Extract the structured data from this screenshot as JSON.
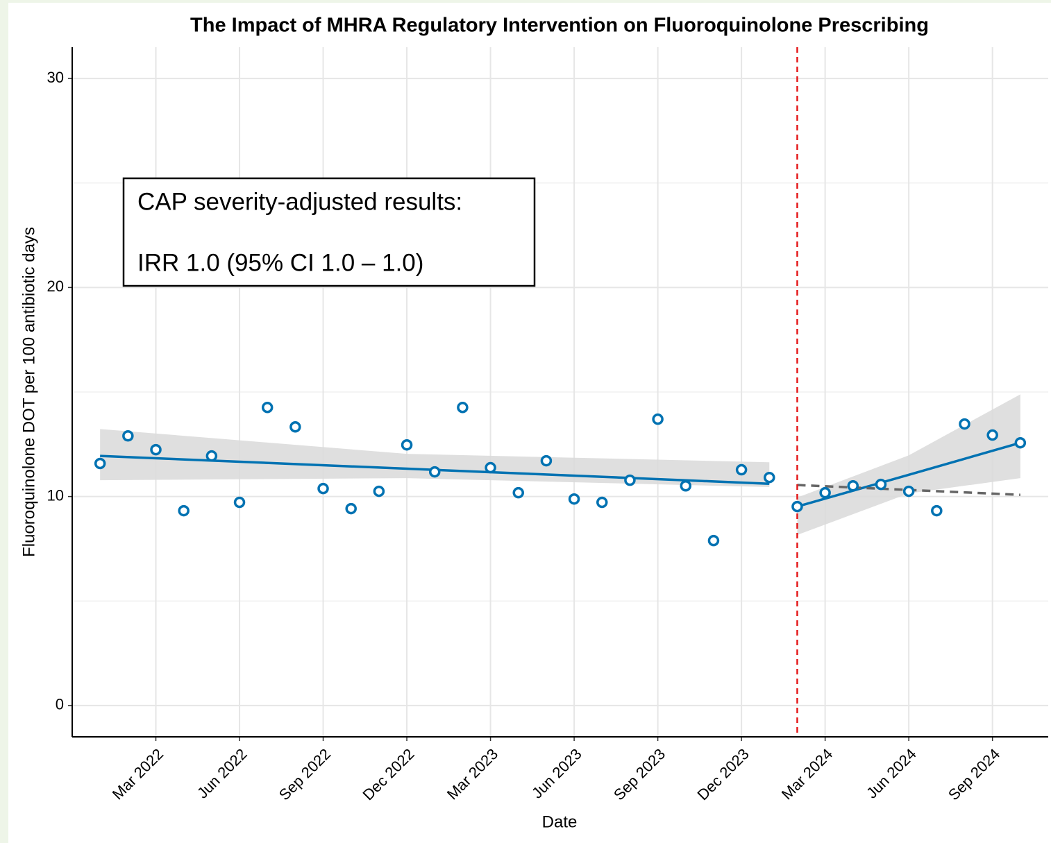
{
  "chart_data": {
    "type": "line",
    "title": "The Impact of MHRA Regulatory Intervention on Fluoroquinolone Prescribing",
    "x_label": "Date",
    "y_label": "Fluoroquinolone DOT per 100 antibiotic days",
    "annotation": [
      "CAP severity-adjusted results:",
      "IRR 1.0 (95% CI 1.0 – 1.0)"
    ],
    "intervention": {
      "x": "2024-02",
      "color": "#e41a1c"
    },
    "xlim": [
      "2021-12",
      "2024-11"
    ],
    "xticks": [
      {
        "value": "2022-03",
        "label": "Mar 2022"
      },
      {
        "value": "2022-06",
        "label": "Jun 2022"
      },
      {
        "value": "2022-09",
        "label": "Sep 2022"
      },
      {
        "value": "2022-12",
        "label": "Dec 2022"
      },
      {
        "value": "2023-03",
        "label": "Mar 2023"
      },
      {
        "value": "2023-06",
        "label": "Jun 2023"
      },
      {
        "value": "2023-09",
        "label": "Sep 2023"
      },
      {
        "value": "2023-12",
        "label": "Dec 2023"
      },
      {
        "value": "2024-03",
        "label": "Mar 2024"
      },
      {
        "value": "2024-06",
        "label": "Jun 2024"
      },
      {
        "value": "2024-09",
        "label": "Sep 2024"
      }
    ],
    "ylim": [
      -1.5,
      31.5
    ],
    "yticks": [
      0,
      10,
      20,
      30
    ],
    "yminor": [
      5,
      15,
      25
    ],
    "grid": true,
    "series": [
      {
        "mode": "markers",
        "color": "#0072b2",
        "x": [
          "2022-01",
          "2022-02",
          "2022-03",
          "2022-04",
          "2022-05",
          "2022-06",
          "2022-07",
          "2022-08",
          "2022-09",
          "2022-10",
          "2022-11",
          "2022-12",
          "2023-01",
          "2023-02",
          "2023-03",
          "2023-04",
          "2023-05",
          "2023-06",
          "2023-07",
          "2023-08",
          "2023-09",
          "2023-10",
          "2023-11",
          "2023-12",
          "2024-01",
          "2024-02",
          "2024-03",
          "2024-04",
          "2024-05",
          "2024-06",
          "2024-07",
          "2024-08",
          "2024-09",
          "2024-10"
        ],
        "values": [
          11.58,
          12.9,
          12.24,
          9.32,
          11.94,
          9.72,
          14.26,
          13.33,
          10.38,
          9.42,
          10.25,
          12.47,
          11.18,
          14.26,
          11.38,
          10.18,
          11.71,
          9.88,
          9.72,
          10.78,
          13.7,
          10.51,
          7.89,
          11.28,
          10.91,
          9.52,
          10.18,
          10.51,
          10.58,
          10.25,
          9.32,
          13.47,
          12.94,
          12.57
        ]
      },
      {
        "mode": "fit",
        "color": "#0072b2",
        "band_color": "#d9d9d9",
        "x": [
          "2022-01",
          "2022-12",
          "2024-01"
        ],
        "values": [
          11.94,
          11.33,
          10.61
        ],
        "lower": [
          10.78,
          10.88,
          10.45
        ],
        "upper": [
          13.23,
          12.04,
          11.64
        ]
      },
      {
        "mode": "fit",
        "color": "#0072b2",
        "band_color": "#d9d9d9",
        "x": [
          "2024-02",
          "2024-06",
          "2024-10"
        ],
        "values": [
          9.52,
          11.04,
          12.57
        ],
        "lower": [
          8.16,
          10.15,
          10.88
        ],
        "upper": [
          9.95,
          11.97,
          14.89
        ]
      },
      {
        "mode": "dashed",
        "color": "#666666",
        "x": [
          "2024-02",
          "2024-10"
        ],
        "values": [
          10.55,
          10.08
        ]
      }
    ]
  }
}
